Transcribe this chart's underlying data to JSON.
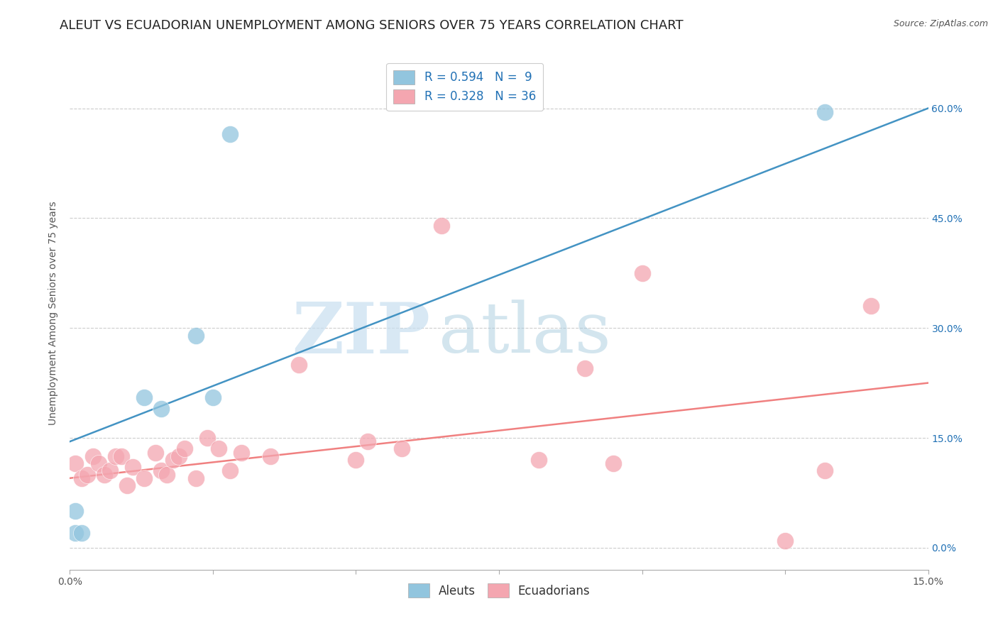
{
  "title": "ALEUT VS ECUADORIAN UNEMPLOYMENT AMONG SENIORS OVER 75 YEARS CORRELATION CHART",
  "source": "Source: ZipAtlas.com",
  "ylabel": "Unemployment Among Seniors over 75 years",
  "xlim": [
    0.0,
    0.15
  ],
  "ylim": [
    -0.03,
    0.67
  ],
  "yticks": [
    0.0,
    0.15,
    0.3,
    0.45,
    0.6
  ],
  "ytick_labels": [
    "0.0%",
    "15.0%",
    "30.0%",
    "45.0%",
    "60.0%"
  ],
  "xticks": [
    0.0,
    0.025,
    0.05,
    0.075,
    0.1,
    0.125,
    0.15
  ],
  "xtick_labels": [
    "0.0%",
    "",
    "",
    "",
    "",
    "",
    "15.0%"
  ],
  "aleut_R": 0.594,
  "aleut_N": 9,
  "ecuadorian_R": 0.328,
  "ecuadorian_N": 36,
  "aleut_color": "#92c5de",
  "ecuadorian_color": "#f4a6b0",
  "aleut_line_color": "#4393c3",
  "ecuadorian_line_color": "#f08080",
  "legend_label_aleuts": "Aleuts",
  "legend_label_ecuadorians": "Ecuadorians",
  "watermark_zip": "ZIP",
  "watermark_atlas": "atlas",
  "aleut_x": [
    0.001,
    0.001,
    0.002,
    0.013,
    0.016,
    0.022,
    0.025,
    0.028,
    0.132
  ],
  "aleut_y": [
    0.02,
    0.05,
    0.02,
    0.205,
    0.19,
    0.29,
    0.205,
    0.565,
    0.595
  ],
  "ecuadorian_x": [
    0.001,
    0.002,
    0.003,
    0.004,
    0.005,
    0.006,
    0.007,
    0.008,
    0.009,
    0.01,
    0.011,
    0.013,
    0.015,
    0.016,
    0.017,
    0.018,
    0.019,
    0.02,
    0.022,
    0.024,
    0.026,
    0.028,
    0.03,
    0.035,
    0.04,
    0.05,
    0.052,
    0.058,
    0.065,
    0.082,
    0.09,
    0.095,
    0.1,
    0.125,
    0.132,
    0.14
  ],
  "ecuadorian_y": [
    0.115,
    0.095,
    0.1,
    0.125,
    0.115,
    0.1,
    0.105,
    0.125,
    0.125,
    0.085,
    0.11,
    0.095,
    0.13,
    0.105,
    0.1,
    0.12,
    0.125,
    0.135,
    0.095,
    0.15,
    0.135,
    0.105,
    0.13,
    0.125,
    0.25,
    0.12,
    0.145,
    0.135,
    0.44,
    0.12,
    0.245,
    0.115,
    0.375,
    0.01,
    0.105,
    0.33
  ],
  "background_color": "#ffffff",
  "grid_color": "#cccccc",
  "title_fontsize": 13,
  "axis_label_fontsize": 10,
  "tick_fontsize": 10,
  "legend_fontsize": 12,
  "legend_color": "#2171b5"
}
